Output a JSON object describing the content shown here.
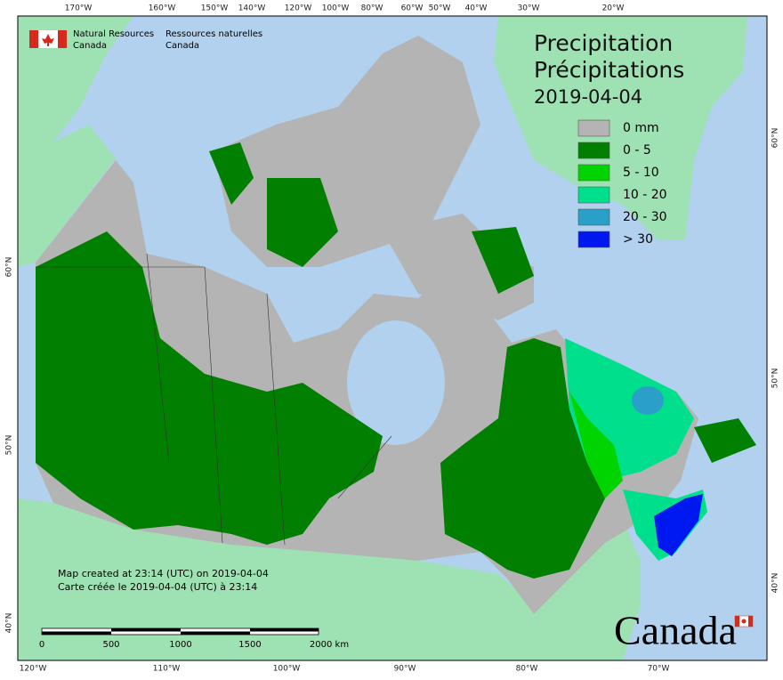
{
  "header": {
    "agency_en": "Natural Resources",
    "agency_en_2": "Canada",
    "agency_fr": "Ressources naturelles",
    "agency_fr_2": "Canada"
  },
  "title": {
    "en": "Precipitation",
    "fr": "Précipitations",
    "date": "2019-04-04"
  },
  "legend": {
    "items": [
      {
        "label": "0 mm",
        "color": "#b4b4b4"
      },
      {
        "label": "0 - 5",
        "color": "#007f00"
      },
      {
        "label": "5 - 10",
        "color": "#00d400"
      },
      {
        "label": "10 - 20",
        "color": "#00e08c"
      },
      {
        "label": "20 - 30",
        "color": "#2aa0c8"
      },
      {
        "label": "> 30",
        "color": "#0018f0"
      }
    ]
  },
  "footer": {
    "created_en": "Map created at 23:14 (UTC) on 2019-04-04",
    "created_fr": "Carte créée le 2019-04-04 (UTC) à 23:14"
  },
  "scale_bar": {
    "labels": [
      "0",
      "500",
      "1000",
      "1500",
      "2000 km"
    ]
  },
  "graticule": {
    "top": [
      "170°W",
      "160°W",
      "150°W",
      "140°W",
      "120°W",
      "100°W",
      "80°W",
      "60°W",
      "50°W",
      "40°W",
      "30°W",
      "20°W"
    ],
    "bottom": [
      "120°W",
      "110°W",
      "100°W",
      "90°W",
      "80°W",
      "70°W"
    ],
    "left": [
      "60°N",
      "50°N",
      "40°N"
    ],
    "right": [
      "60°N",
      "50°N",
      "40°N"
    ]
  },
  "wordmark": "Canada"
}
